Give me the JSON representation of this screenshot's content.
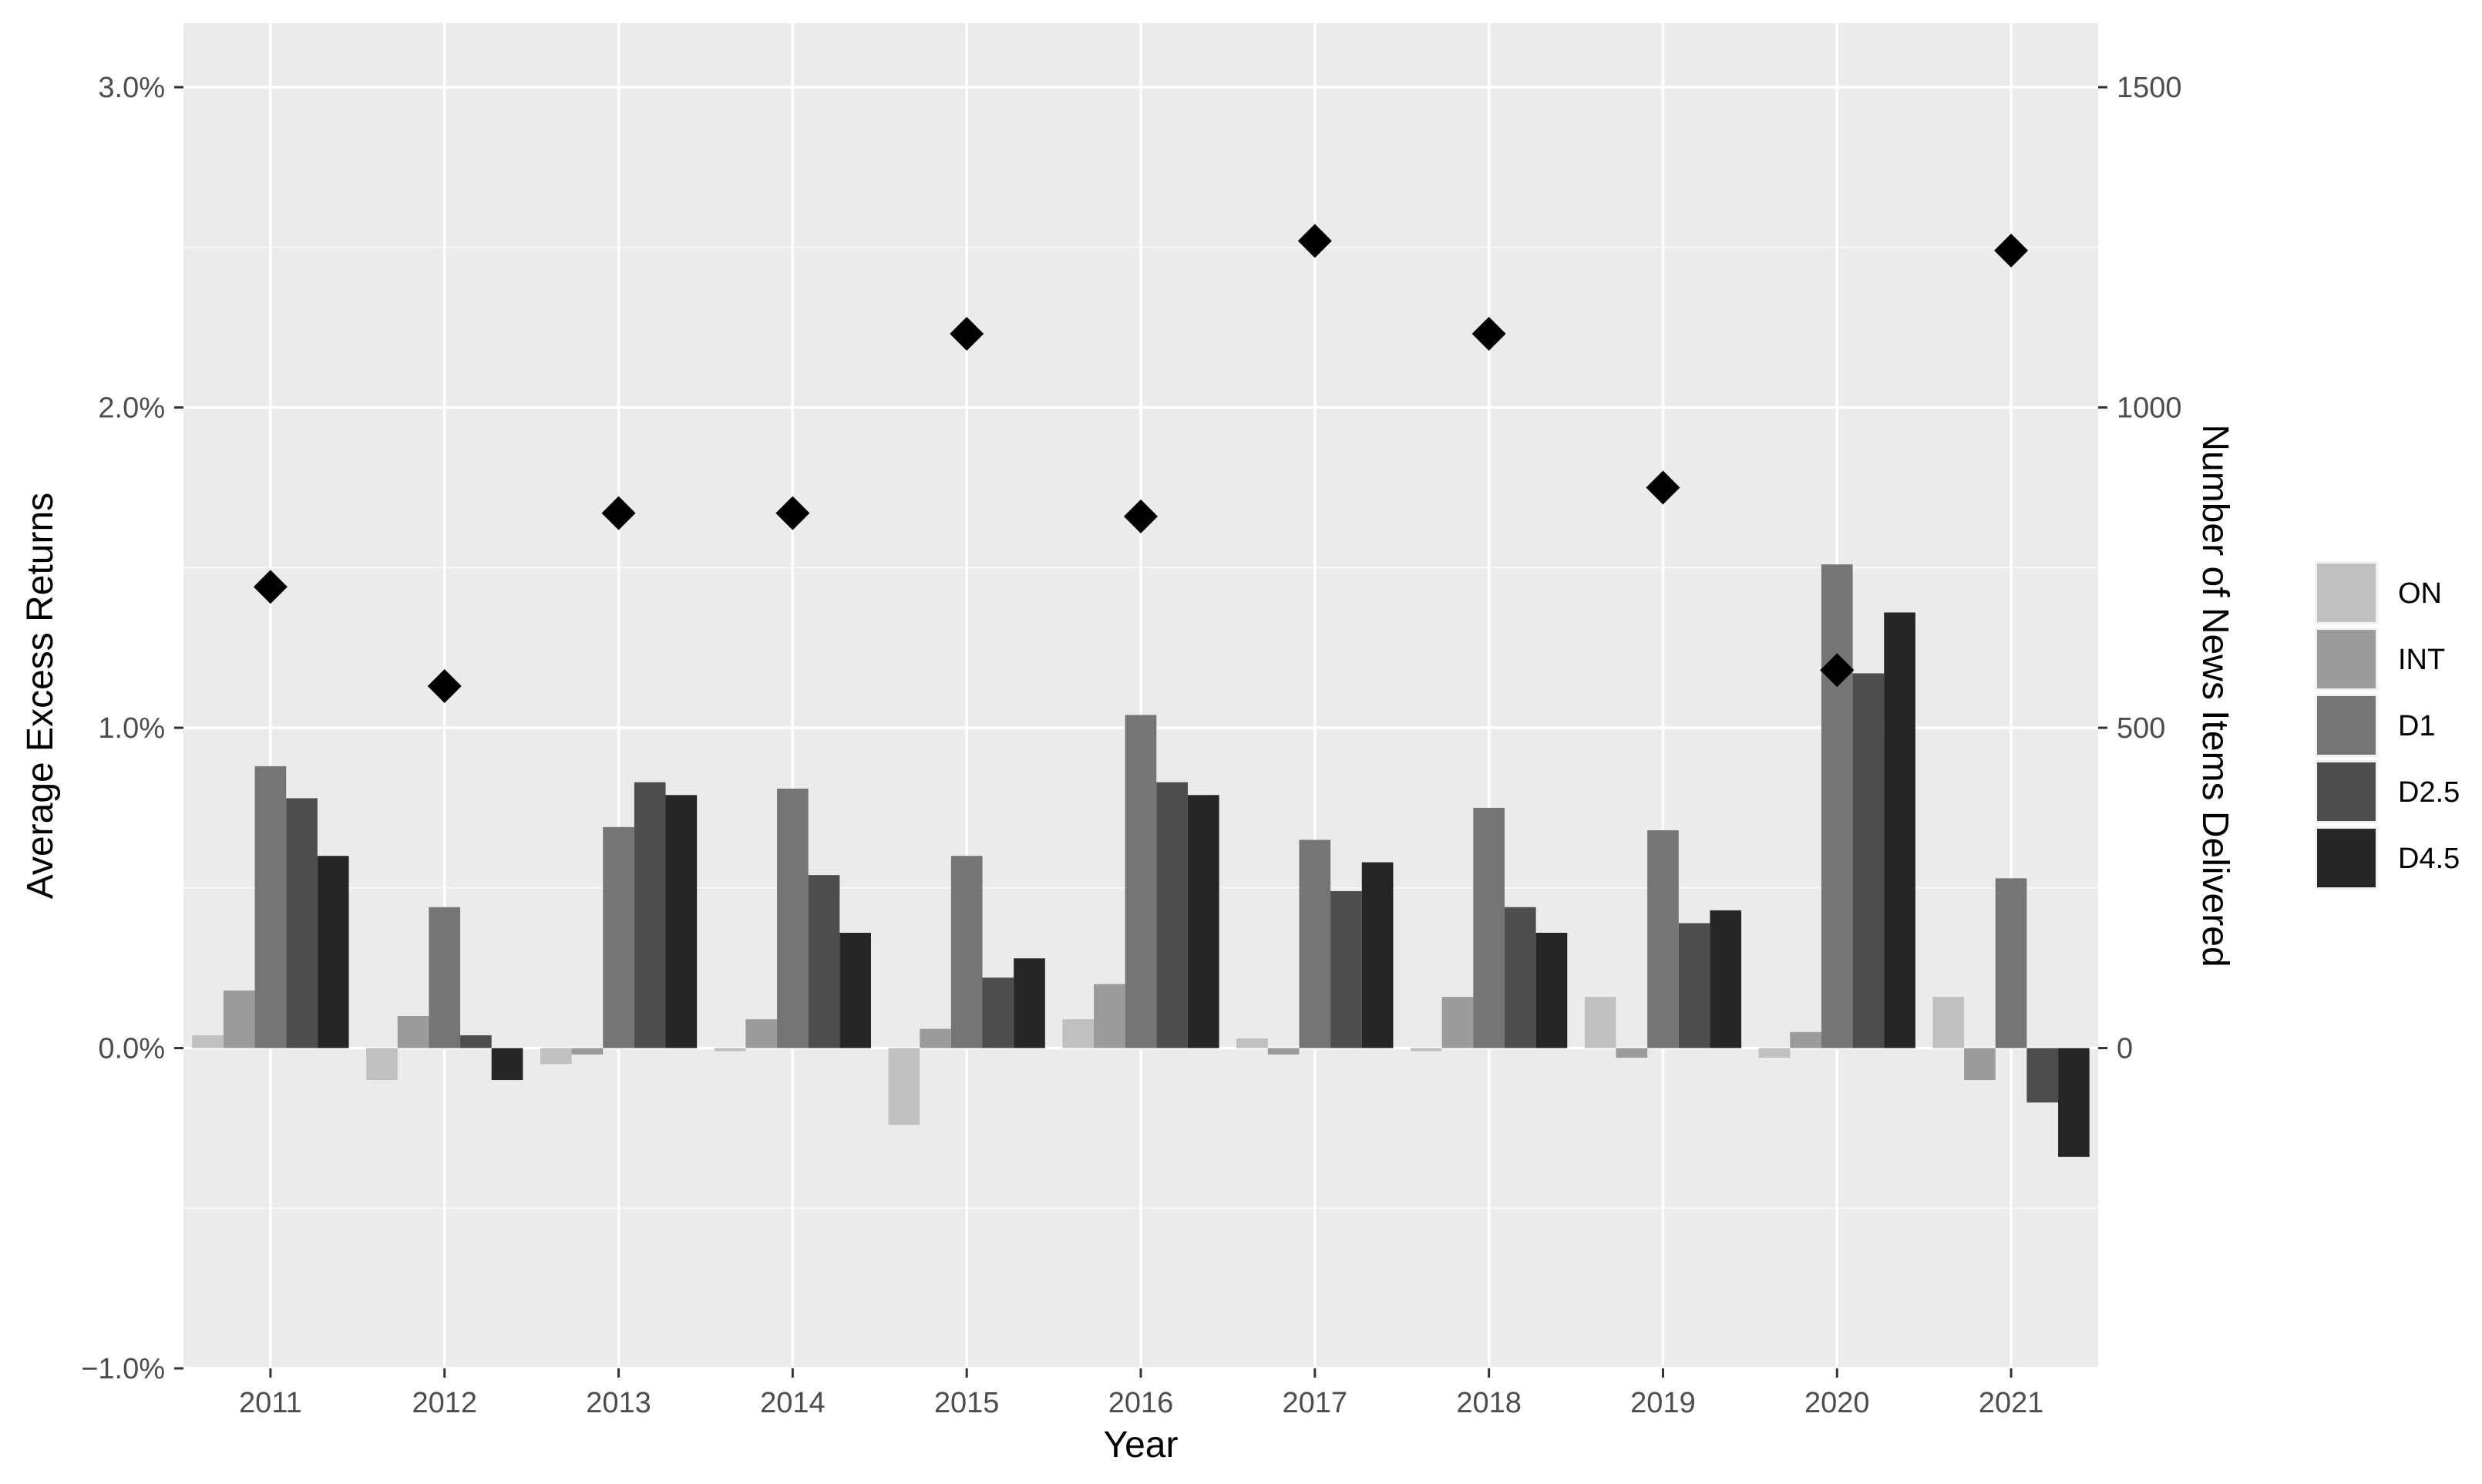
{
  "chart_data": {
    "type": "bar",
    "xlabel": "Year",
    "ylabel": "Average Excess Returns",
    "y2label": "Number of News Items Delivered",
    "categories": [
      "2011",
      "2012",
      "2013",
      "2014",
      "2015",
      "2016",
      "2017",
      "2018",
      "2019",
      "2020",
      "2021"
    ],
    "ylim": [
      -1.0,
      3.2
    ],
    "y_ticks": [
      -1.0,
      0.0,
      1.0,
      2.0,
      3.0
    ],
    "y_tick_labels": [
      "−1.0%",
      "0.0%",
      "1.0%",
      "2.0%",
      "3.0%"
    ],
    "y2lim": [
      -500,
      1600
    ],
    "y2_ticks": [
      0,
      500,
      1000,
      1500
    ],
    "y2_tick_labels": [
      "0",
      "500",
      "1000",
      "1500"
    ],
    "grid": true,
    "legend_position": "right",
    "series": [
      {
        "name": "ON",
        "color": "#c0c0c0",
        "values": [
          0.04,
          -0.1,
          -0.05,
          -0.01,
          -0.24,
          0.09,
          0.03,
          -0.01,
          0.16,
          -0.03,
          0.16
        ]
      },
      {
        "name": "INT",
        "color": "#9b9b9b",
        "values": [
          0.18,
          0.1,
          -0.02,
          0.09,
          0.06,
          0.2,
          -0.02,
          0.16,
          -0.03,
          0.05,
          -0.1
        ]
      },
      {
        "name": "D1",
        "color": "#757575",
        "values": [
          0.88,
          0.44,
          0.69,
          0.81,
          0.6,
          1.04,
          0.65,
          0.75,
          0.68,
          1.51,
          0.53
        ]
      },
      {
        "name": "D2.5",
        "color": "#4d4d4d",
        "values": [
          0.78,
          0.04,
          0.83,
          0.54,
          0.22,
          0.83,
          0.49,
          0.44,
          0.39,
          1.17,
          -0.17
        ]
      },
      {
        "name": "D4.5",
        "color": "#262626",
        "values": [
          0.6,
          -0.1,
          0.79,
          0.36,
          0.28,
          0.79,
          0.58,
          0.36,
          0.43,
          1.36,
          -0.34
        ]
      }
    ],
    "news_items": {
      "values": [
        720,
        565,
        835,
        835,
        1115,
        830,
        1260,
        1115,
        875,
        590,
        1245
      ],
      "marker": "diamond",
      "color": "#000000"
    }
  }
}
